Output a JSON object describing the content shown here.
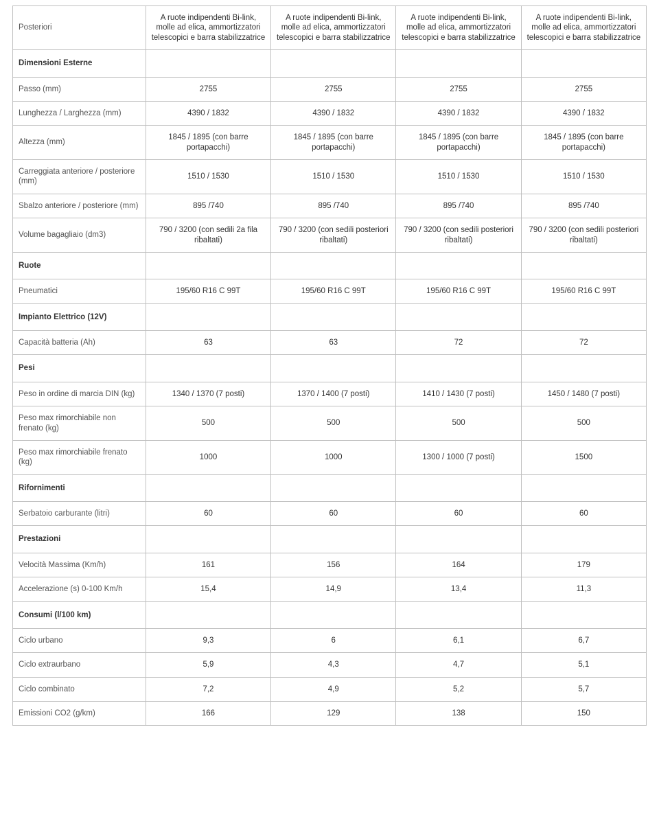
{
  "table": {
    "columns": 5,
    "rows": [
      {
        "type": "data",
        "label": "Posteriori",
        "values": [
          "A ruote indipendenti Bi-link, molle ad elica, ammortizzatori telescopici e barra stabilizzatrice",
          "A ruote indipendenti Bi-link, molle ad elica, ammortizzatori telescopici e barra stabilizzatrice",
          "A ruote indipendenti Bi-link, molle ad elica, ammortizzatori telescopici e barra stabilizzatrice",
          "A ruote indipendenti Bi-link, molle ad elica, ammortizzatori telescopici e barra stabilizzatrice"
        ]
      },
      {
        "type": "section",
        "label": "Dimensioni Esterne"
      },
      {
        "type": "data",
        "label": "Passo (mm)",
        "values": [
          "2755",
          "2755",
          "2755",
          "2755"
        ]
      },
      {
        "type": "data",
        "label": "Lunghezza / Larghezza (mm)",
        "values": [
          "4390 / 1832",
          "4390 / 1832",
          "4390 / 1832",
          "4390 / 1832"
        ]
      },
      {
        "type": "data",
        "label": "Altezza (mm)",
        "values": [
          "1845 / 1895 (con barre portapacchi)",
          "1845 / 1895 (con barre portapacchi)",
          "1845 / 1895 (con barre portapacchi)",
          "1845 / 1895 (con barre portapacchi)"
        ]
      },
      {
        "type": "data",
        "label": "Carreggiata anteriore / posteriore (mm)",
        "values": [
          "1510 / 1530",
          "1510 / 1530",
          "1510 / 1530",
          "1510 / 1530"
        ]
      },
      {
        "type": "data",
        "label": "Sbalzo anteriore / posteriore (mm)",
        "values": [
          "895 /740",
          "895 /740",
          "895 /740",
          "895 /740"
        ]
      },
      {
        "type": "data",
        "label": "Volume bagagliaio (dm3)",
        "values": [
          "790 / 3200 (con sedili 2a fila ribaltati)",
          "790 / 3200 (con sedili posteriori ribaltati)",
          "790 / 3200 (con sedili posteriori ribaltati)",
          "790 / 3200 (con sedili posteriori ribaltati)"
        ]
      },
      {
        "type": "section",
        "label": "Ruote"
      },
      {
        "type": "data",
        "label": "Pneumatici",
        "values": [
          "195/60 R16 C 99T",
          "195/60 R16 C 99T",
          "195/60 R16 C 99T",
          "195/60 R16 C 99T"
        ]
      },
      {
        "type": "section",
        "label": "Impianto Elettrico (12V)"
      },
      {
        "type": "data",
        "label": "Capacità batteria (Ah)",
        "values": [
          "63",
          "63",
          "72",
          "72"
        ]
      },
      {
        "type": "section",
        "label": "Pesi"
      },
      {
        "type": "data",
        "label": "Peso in ordine di marcia DIN (kg)",
        "values": [
          "1340 / 1370 (7 posti)",
          "1370 / 1400 (7 posti)",
          "1410 / 1430 (7 posti)",
          "1450 / 1480 (7 posti)"
        ]
      },
      {
        "type": "data",
        "label": "Peso max rimorchiabile non frenato (kg)",
        "values": [
          "500",
          "500",
          "500",
          "500"
        ]
      },
      {
        "type": "data",
        "label": "Peso max rimorchiabile frenato (kg)",
        "values": [
          "1000",
          "1000",
          "1300 / 1000 (7 posti)",
          "1500"
        ]
      },
      {
        "type": "section",
        "label": "Rifornimenti"
      },
      {
        "type": "data",
        "label": "Serbatoio carburante (litri)",
        "values": [
          "60",
          "60",
          "60",
          "60"
        ]
      },
      {
        "type": "section",
        "label": "Prestazioni"
      },
      {
        "type": "data",
        "label": "Velocità Massima (Km/h)",
        "values": [
          "161",
          "156",
          "164",
          "179"
        ]
      },
      {
        "type": "data",
        "label": "Accelerazione (s) 0-100 Km/h",
        "values": [
          "15,4",
          "14,9",
          "13,4",
          "11,3"
        ]
      },
      {
        "type": "section",
        "label": "Consumi (l/100 km)"
      },
      {
        "type": "data",
        "label": "Ciclo urbano",
        "values": [
          "9,3",
          "6",
          "6,1",
          "6,7"
        ]
      },
      {
        "type": "data",
        "label": "Ciclo extraurbano",
        "values": [
          "5,9",
          "4,3",
          "4,7",
          "5,1"
        ]
      },
      {
        "type": "data",
        "label": "Ciclo combinato",
        "values": [
          "7,2",
          "4,9",
          "5,2",
          "5,7"
        ]
      },
      {
        "type": "data",
        "label": "Emissioni CO2 (g/km)",
        "values": [
          "166",
          "129",
          "138",
          "150"
        ]
      }
    ]
  },
  "style": {
    "font_family": "Arial",
    "font_size_pt": 9,
    "text_color": "#333333",
    "label_color": "#555555",
    "border_color": "#bfbfbf",
    "background_color": "#ffffff",
    "col_widths_percent": [
      21,
      19.75,
      19.75,
      19.75,
      19.75
    ]
  }
}
